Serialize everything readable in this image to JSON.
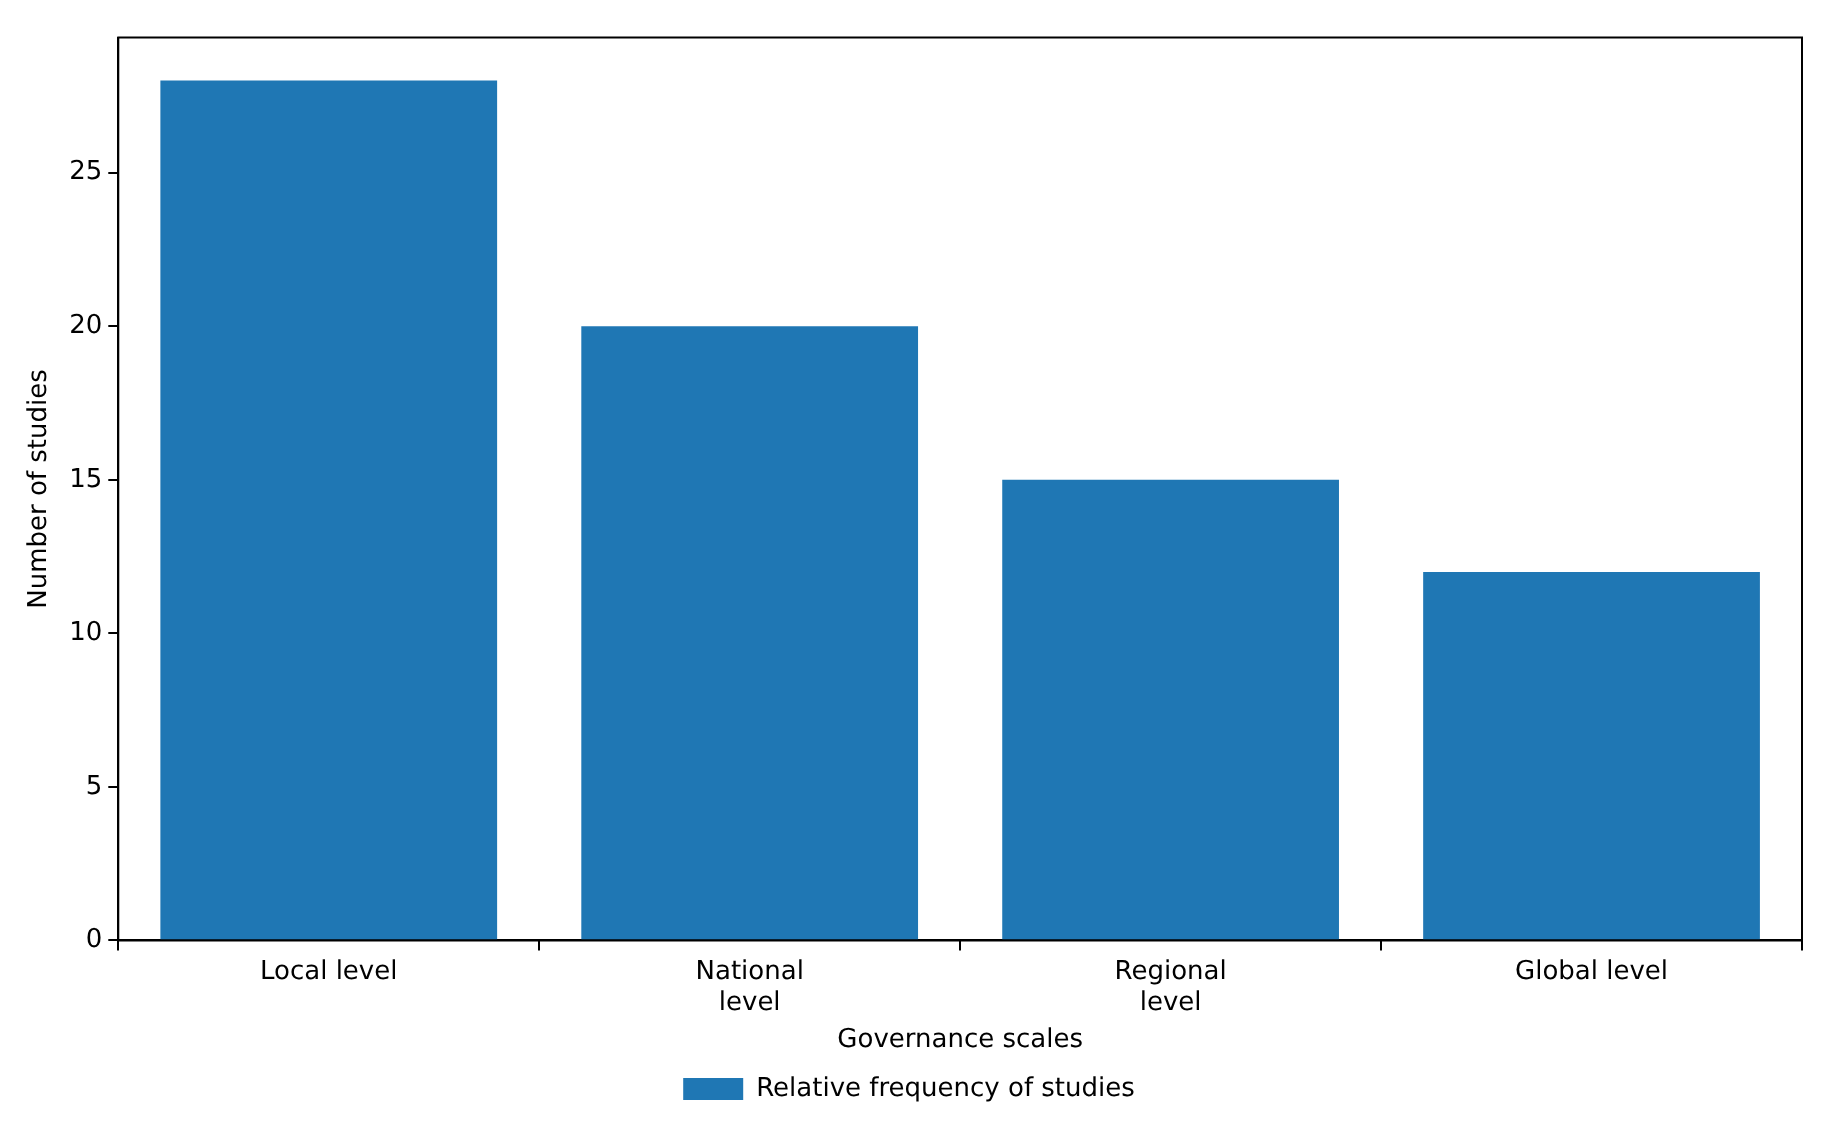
{
  "chart_data": {
    "type": "bar",
    "xlabel": "Governance scales",
    "ylabel": "Number of studies",
    "categories": [
      "Local level",
      "National\nlevel",
      "Regional\nlevel",
      "Global level"
    ],
    "series": [
      {
        "name": "Relative frequency of studies",
        "color": "#1f77b4",
        "values": [
          28,
          20,
          15,
          12
        ]
      }
    ],
    "ylim": [
      0,
      29.4
    ],
    "yticks": [
      0,
      5,
      10,
      15,
      20,
      25
    ],
    "grid": false,
    "legend": "bottom"
  }
}
